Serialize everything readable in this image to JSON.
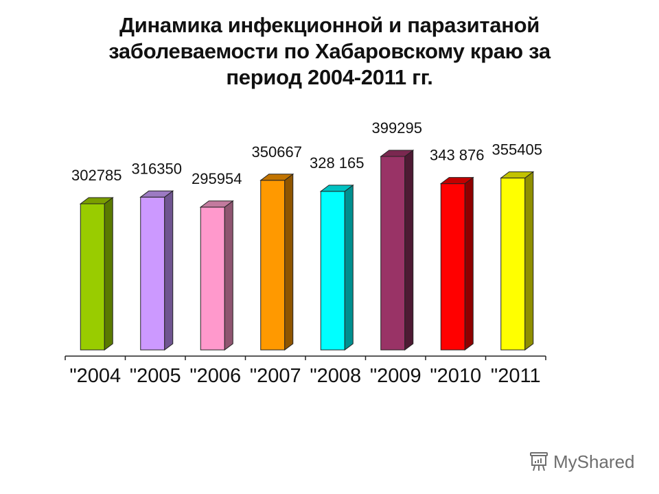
{
  "title": {
    "line1": "Динамика инфекционной и паразитаной",
    "line2": "заболеваемости по Хабаровскому краю за",
    "line3": "период 2004-2011 гг."
  },
  "chart_data": {
    "type": "bar",
    "title": "Динамика инфекционной и паразитаной заболеваемости по Хабаровскому краю за период 2004-2011 гг.",
    "xlabel": "",
    "ylabel": "",
    "categories": [
      "\"2004",
      "\"2005",
      "\"2006",
      "\"2007",
      "\"2008",
      "\"2009",
      "\"2010",
      "\"2011"
    ],
    "values": [
      302785,
      316350,
      295954,
      350667,
      328165,
      399295,
      343876,
      355405
    ],
    "data_labels": [
      "302785",
      "316350",
      "295954",
      "350667",
      "328 165",
      "399295",
      "343 876",
      "355405"
    ],
    "colors": [
      "#99cc00",
      "#cc99ff",
      "#ff99cc",
      "#ff9900",
      "#00ffff",
      "#993366",
      "#ff0000",
      "#ffff00"
    ],
    "side_colors": [
      "#5a7a00",
      "#6f5590",
      "#8f5570",
      "#8f5500",
      "#008f8f",
      "#4d1a33",
      "#8f0000",
      "#8f8f00"
    ],
    "top_colors": [
      "#7a9e00",
      "#9c7ac2",
      "#c27a9e",
      "#c27400",
      "#00c2c2",
      "#7a2850",
      "#c20000",
      "#c2c200"
    ],
    "bar_3d": true,
    "grid": false,
    "legend": "none",
    "value_axis_visible": false
  },
  "watermark": {
    "text": "MyShared",
    "icon": "presentation-board-icon"
  }
}
